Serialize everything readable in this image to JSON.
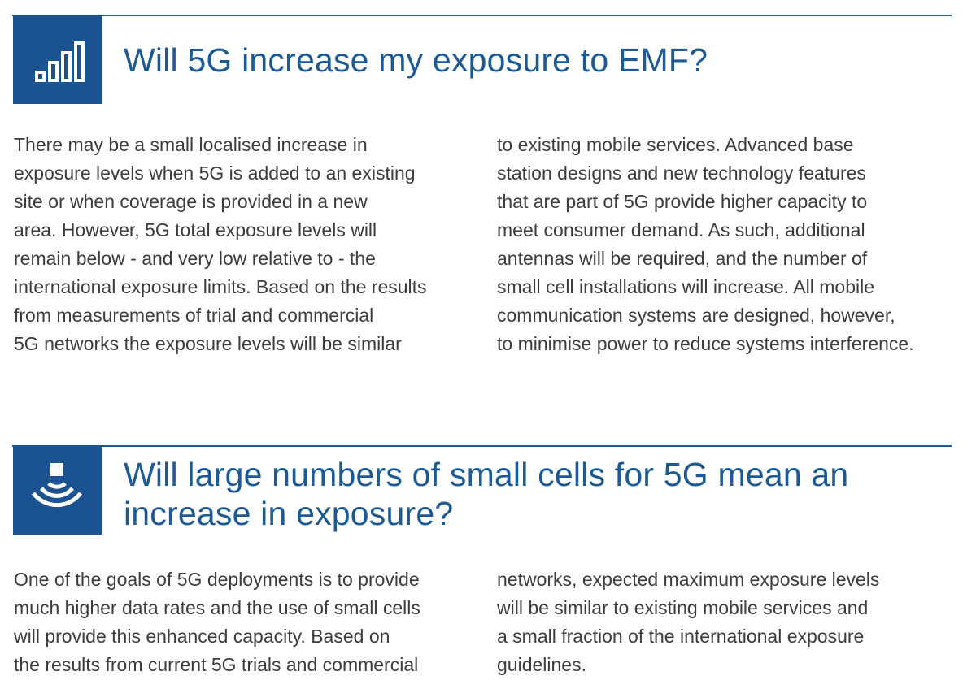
{
  "sections": [
    {
      "icon": "signal-bars-icon",
      "heading_lines": [
        "Will 5G increase my exposure to EMF?"
      ],
      "left_lines": [
        "There may be a small localised increase in",
        "exposure levels when 5G is added to an existing",
        "site or when coverage is provided in a new",
        "area. However, 5G total exposure levels will",
        "remain below - and very low relative to - the",
        "international exposure limits. Based on the results",
        "from measurements of trial and commercial",
        "5G networks the exposure levels will be similar"
      ],
      "right_lines": [
        "to existing mobile services. Advanced base",
        "station designs and new technology features",
        "that are part of 5G provide higher capacity to",
        "meet consumer demand. As such, additional",
        "antennas will be required, and the number of",
        "small cell installations will increase. All mobile",
        "communication systems are designed, however,",
        "to minimise power to reduce systems interference."
      ]
    },
    {
      "icon": "small-cell-broadcast-icon",
      "heading_lines": [
        "Will large numbers of small cells for 5G mean an",
        "increase in exposure?"
      ],
      "left_lines": [
        "One of the goals of 5G deployments is to provide",
        "much higher data rates and the use of small cells",
        "will provide this enhanced capacity. Based on",
        "the results from current 5G trials and commercial"
      ],
      "right_lines": [
        "networks, expected maximum exposure levels",
        "will be similar to existing mobile services and",
        "a small fraction of the international exposure",
        "guidelines."
      ]
    }
  ],
  "colors": {
    "accent": "#1a5390",
    "heading": "#1d5a94",
    "body_text": "#3c3c3c"
  }
}
